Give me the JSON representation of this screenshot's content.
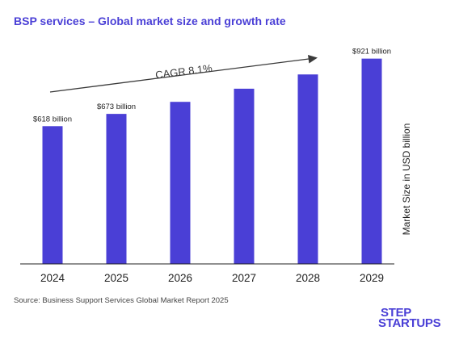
{
  "title": "BSP services – Global market size and growth rate",
  "source": "Source: Business Support Services Global Market Report 2025",
  "logo": {
    "line1": "STEP",
    "line2": "STARTUPS"
  },
  "colors": {
    "bar": "#4a3fd6",
    "title": "#4a3fd6",
    "axis": "#222222",
    "text": "#222222"
  },
  "chart_data": {
    "type": "bar",
    "categories": [
      "2024",
      "2025",
      "2026",
      "2027",
      "2028",
      "2029"
    ],
    "values": [
      618,
      673,
      727,
      786,
      850,
      921
    ],
    "data_labels": [
      "$618 billion",
      "$673 billion",
      "",
      "",
      "",
      "$921 billion"
    ],
    "ylabel": "Market Size in USD billion",
    "annotation": "CAGR 8.1%",
    "ylim": [
      0,
      1050
    ],
    "grid": false
  }
}
